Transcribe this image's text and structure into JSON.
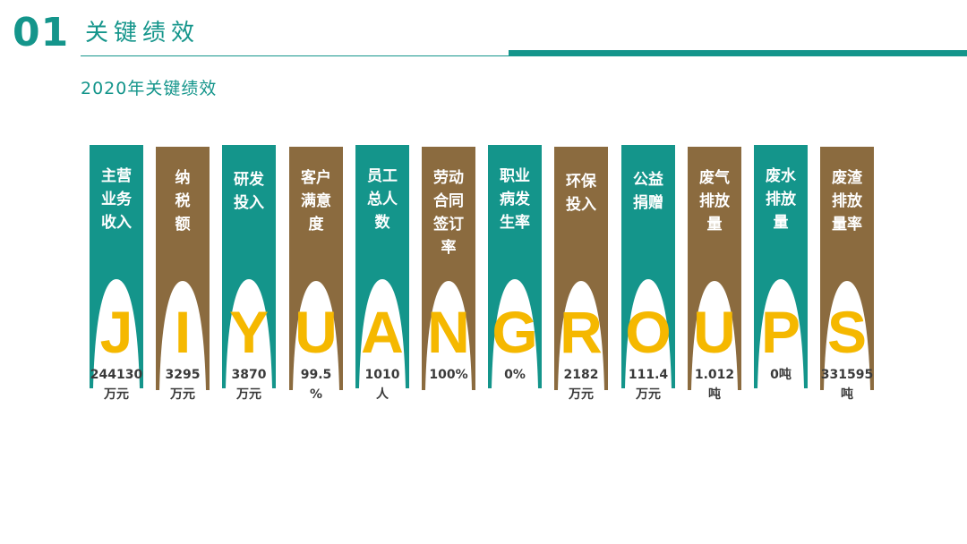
{
  "header": {
    "section_number": "01",
    "section_title": "关键绩效",
    "subtitle": "2020年关键绩效"
  },
  "colors": {
    "teal": "#14958b",
    "brown": "#8b6b3f",
    "yellow": "#f5b800"
  },
  "metrics": [
    {
      "label": "主营\n业务\n收入",
      "letter": "J",
      "value": "244130\n万元",
      "color": "teal"
    },
    {
      "label": "纳\n税\n额",
      "letter": "I",
      "value": "3295\n万元",
      "color": "brown"
    },
    {
      "label": "研发\n投入",
      "letter": "Y",
      "value": "3870\n万元",
      "color": "teal"
    },
    {
      "label": "客户\n满意\n度",
      "letter": "U",
      "value": "99.5\n%",
      "color": "brown"
    },
    {
      "label": "员工\n总人\n数",
      "letter": "A",
      "value": "1010\n人",
      "color": "teal"
    },
    {
      "label": "劳动\n合同\n签订\n率",
      "letter": "N",
      "value": "100%",
      "color": "brown"
    },
    {
      "label": "职业\n病发\n生率",
      "letter": "G",
      "value": "0%",
      "color": "teal"
    },
    {
      "label": "环保\n投入",
      "letter": "R",
      "value": "2182\n万元",
      "color": "brown"
    },
    {
      "label": "公益\n捐赠",
      "letter": "O",
      "value": "111.4\n万元",
      "color": "teal"
    },
    {
      "label": "废气\n排放\n量",
      "letter": "U",
      "value": "1.012\n吨",
      "color": "brown"
    },
    {
      "label": "废水\n排放\n量",
      "letter": "P",
      "value": "0吨",
      "color": "teal"
    },
    {
      "label": "废渣\n排放\n量率",
      "letter": "S",
      "value": "331595\n吨",
      "color": "brown"
    }
  ]
}
